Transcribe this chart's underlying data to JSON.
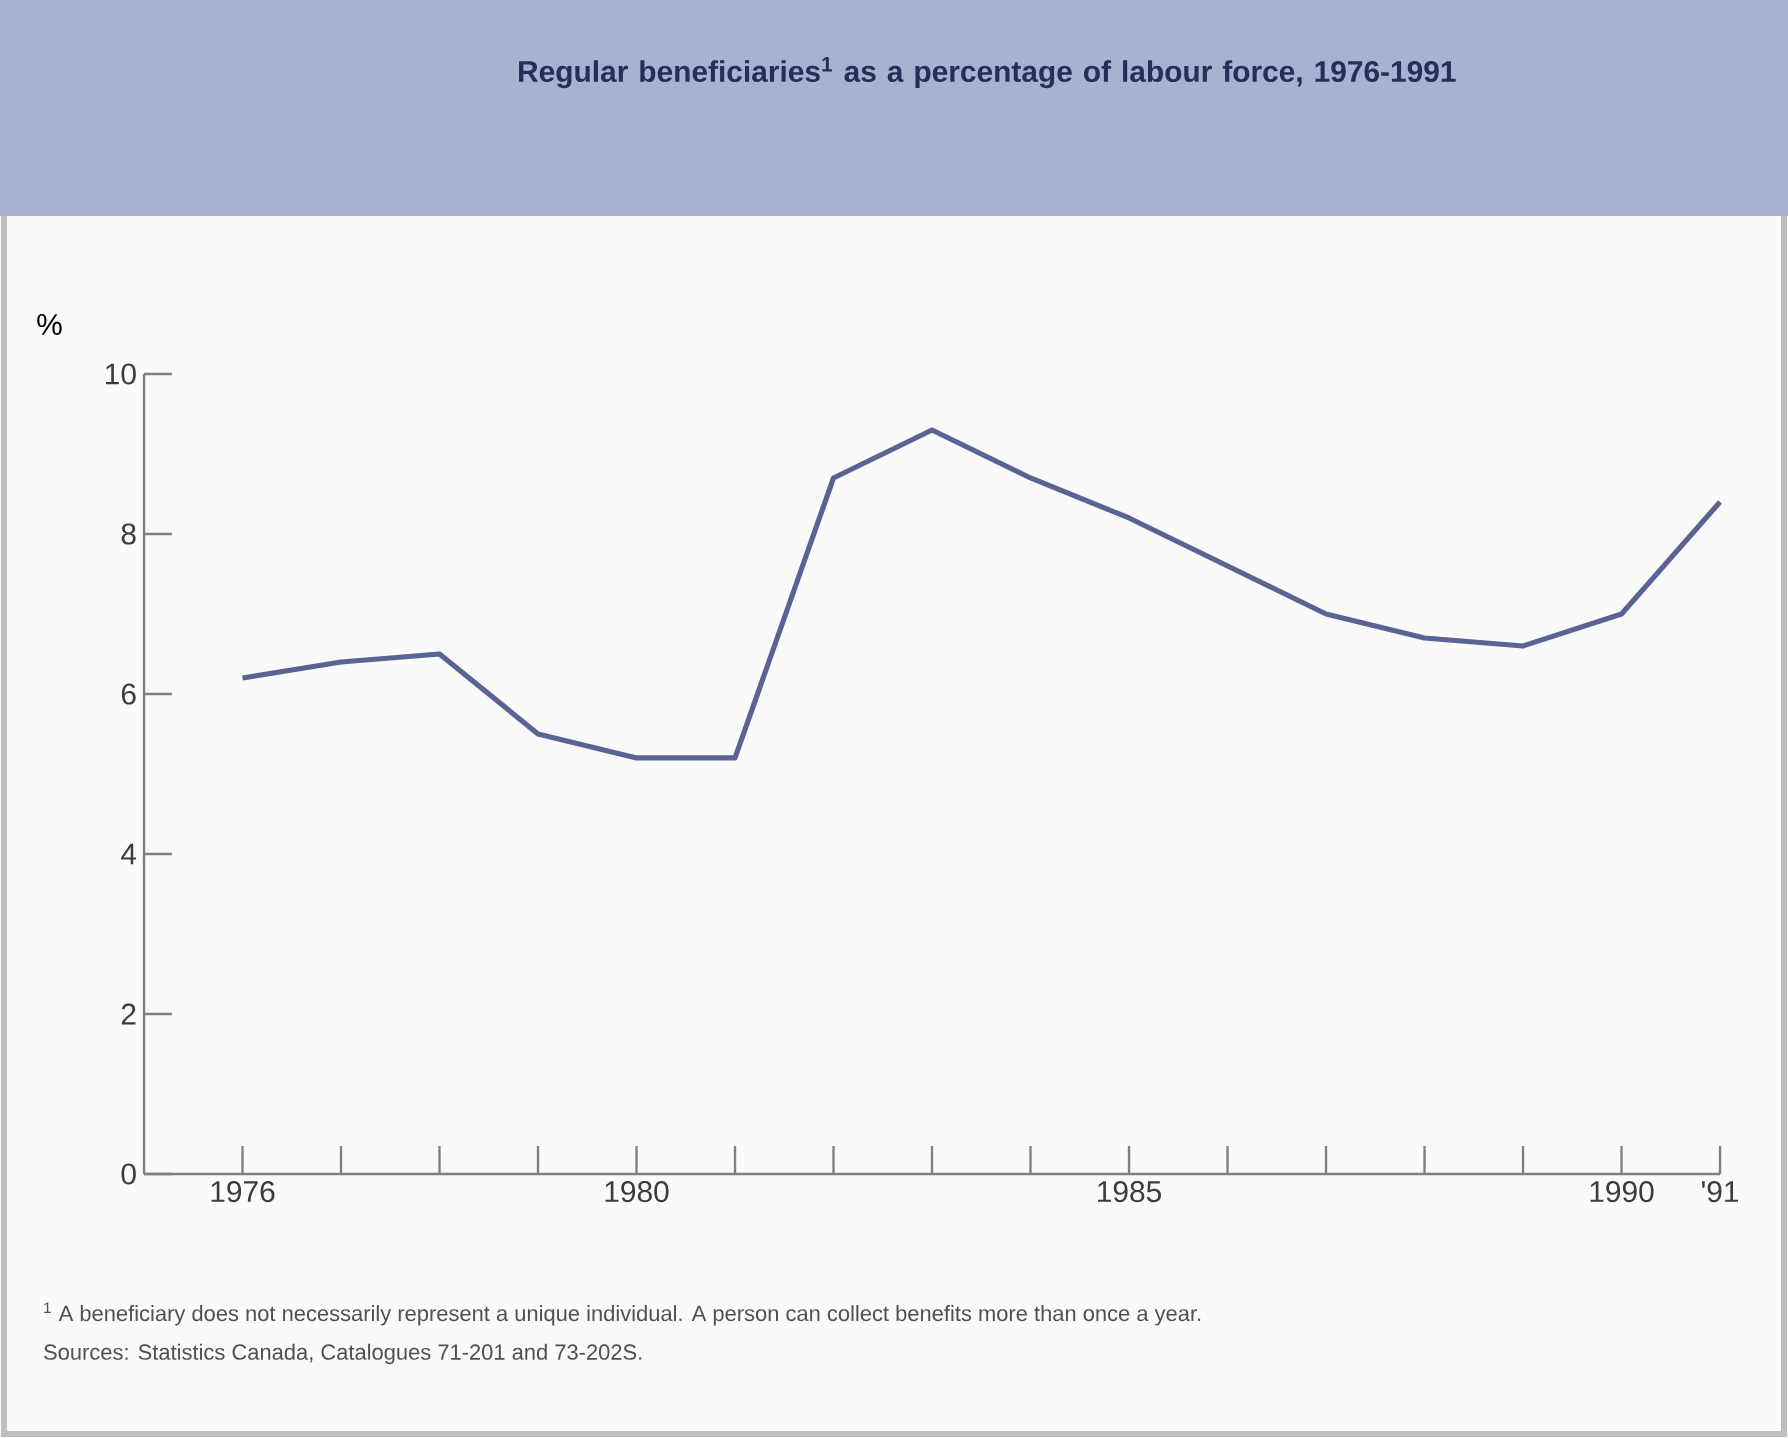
{
  "chart_data": {
    "type": "line",
    "title": "Regular beneficiaries$^{1}$ as a percentage of labour force, 1976-1991",
    "ylabel": "%",
    "x": [
      1976,
      1977,
      1978,
      1979,
      1980,
      1981,
      1982,
      1983,
      1984,
      1985,
      1986,
      1987,
      1988,
      1989,
      1990,
      1991
    ],
    "series": [
      {
        "color": "#5a6494",
        "values": [
          6.2,
          6.4,
          6.5,
          5.5,
          5.2,
          5.2,
          8.7,
          9.3,
          8.7,
          8.2,
          7.6,
          7.0,
          6.7,
          6.6,
          7.0,
          8.4
        ]
      }
    ],
    "xlim": [
      1975,
      1991
    ],
    "xticks": [
      {
        "value": 1976,
        "label": "1976"
      },
      {
        "value": 1977,
        "label": null
      },
      {
        "value": 1978,
        "label": null
      },
      {
        "value": 1979,
        "label": null
      },
      {
        "value": 1980,
        "label": "1980"
      },
      {
        "value": 1981,
        "label": null
      },
      {
        "value": 1982,
        "label": null
      },
      {
        "value": 1983,
        "label": null
      },
      {
        "value": 1984,
        "label": null
      },
      {
        "value": 1985,
        "label": "1985"
      },
      {
        "value": 1986,
        "label": null
      },
      {
        "value": 1987,
        "label": null
      },
      {
        "value": 1988,
        "label": null
      },
      {
        "value": 1989,
        "label": null
      },
      {
        "value": 1990,
        "label": "1990"
      },
      {
        "value": 1991,
        "label": "'91"
      }
    ],
    "ylim": [
      0,
      10
    ],
    "yticks": [
      0,
      2,
      4,
      6,
      8,
      10
    ],
    "grid": false,
    "line_style": "solid",
    "annotations": [
      "$^{1}$ A beneficiary does not necessarily represent a unique individual. A person can collect benefits more than once a year.",
      "Sources: Statistics Canada, Catalogues 71-201 and 73-202S."
    ]
  }
}
